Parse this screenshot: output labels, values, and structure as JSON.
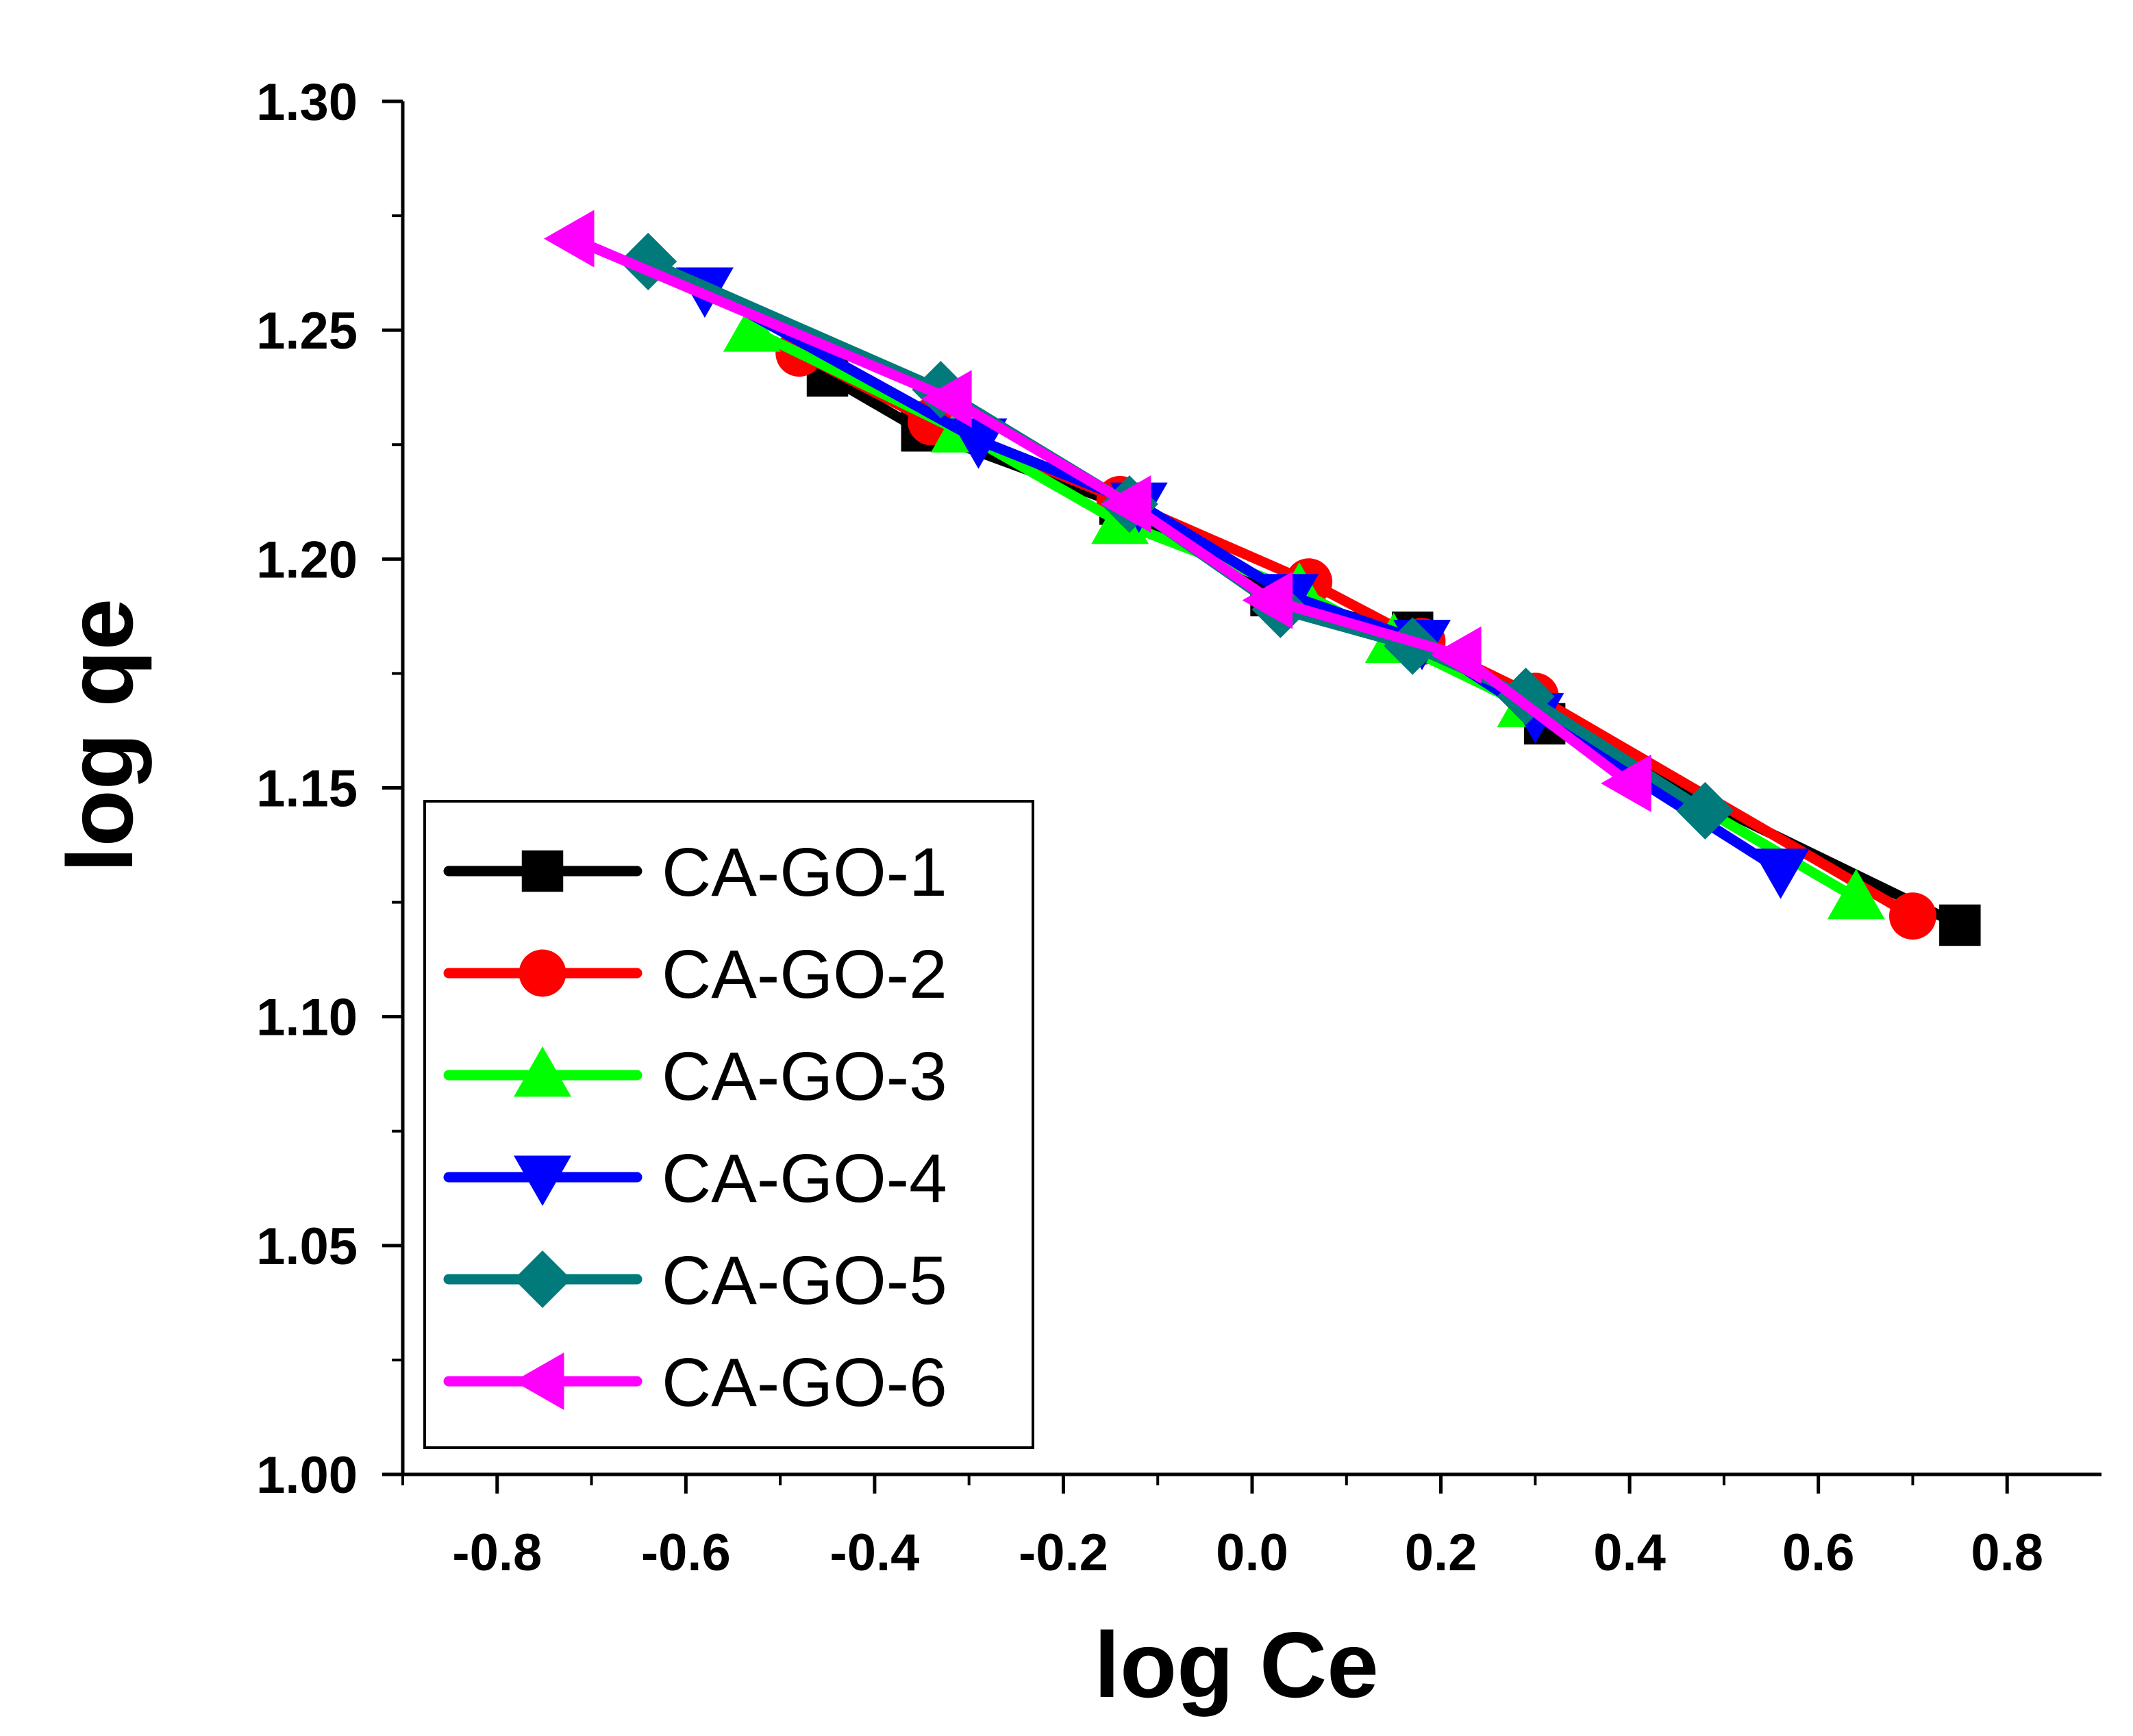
{
  "chart_data": {
    "type": "line",
    "title": "",
    "xlabel": "log Ce",
    "ylabel": "log qe",
    "xlim": [
      -0.9,
      0.9
    ],
    "ylim": [
      1.0,
      1.3
    ],
    "xticks": [
      -0.8,
      -0.6,
      -0.4,
      -0.2,
      0.0,
      0.2,
      0.4,
      0.6,
      0.8
    ],
    "xtick_labels": [
      "-0.8",
      "-0.6",
      "-0.4",
      "-0.2",
      "0.0",
      "0.2",
      "0.4",
      "0.6",
      "0.8"
    ],
    "yticks": [
      1.0,
      1.05,
      1.1,
      1.15,
      1.2,
      1.25,
      1.3
    ],
    "ytick_labels": [
      "1.00",
      "1.05",
      "1.10",
      "1.15",
      "1.20",
      "1.25",
      "1.30"
    ],
    "grid": false,
    "legend_position": "bottom-left",
    "series": [
      {
        "name": "CA-GO-1",
        "color": "#000000",
        "marker": "square",
        "x": [
          -0.45,
          -0.35,
          -0.14,
          0.02,
          0.17,
          0.31,
          0.75
        ],
        "y": [
          1.24,
          1.228,
          1.212,
          1.192,
          1.184,
          1.164,
          1.12
        ]
      },
      {
        "name": "CA-GO-2",
        "color": "#ff0000",
        "marker": "circle",
        "x": [
          -0.48,
          -0.34,
          -0.14,
          0.06,
          0.18,
          0.3,
          0.7
        ],
        "y": [
          1.245,
          1.23,
          1.213,
          1.195,
          1.182,
          1.17,
          1.122
        ]
      },
      {
        "name": "CA-GO-3",
        "color": "#00ff00",
        "marker": "triangle-up",
        "x": [
          -0.53,
          -0.31,
          -0.14,
          0.05,
          0.15,
          0.29,
          0.64
        ],
        "y": [
          1.25,
          1.228,
          1.208,
          1.193,
          1.182,
          1.168,
          1.126
        ]
      },
      {
        "name": "CA-GO-4",
        "color": "#0000ff",
        "marker": "triangle-down",
        "x": [
          -0.58,
          -0.29,
          -0.12,
          0.04,
          0.18,
          0.3,
          0.56
        ],
        "y": [
          1.259,
          1.226,
          1.212,
          1.192,
          1.182,
          1.166,
          1.132
        ]
      },
      {
        "name": "CA-GO-5",
        "color": "#007a7a",
        "marker": "diamond",
        "x": [
          -0.64,
          -0.33,
          -0.13,
          0.03,
          0.17,
          0.29,
          0.48
        ],
        "y": [
          1.265,
          1.237,
          1.212,
          1.189,
          1.181,
          1.17,
          1.145
        ]
      },
      {
        "name": "CA-GO-6",
        "color": "#ff00ff",
        "marker": "triangle-left",
        "x": [
          -0.72,
          -0.32,
          -0.13,
          0.02,
          0.22,
          0.4
        ],
        "y": [
          1.27,
          1.235,
          1.212,
          1.191,
          1.179,
          1.151
        ]
      }
    ]
  }
}
